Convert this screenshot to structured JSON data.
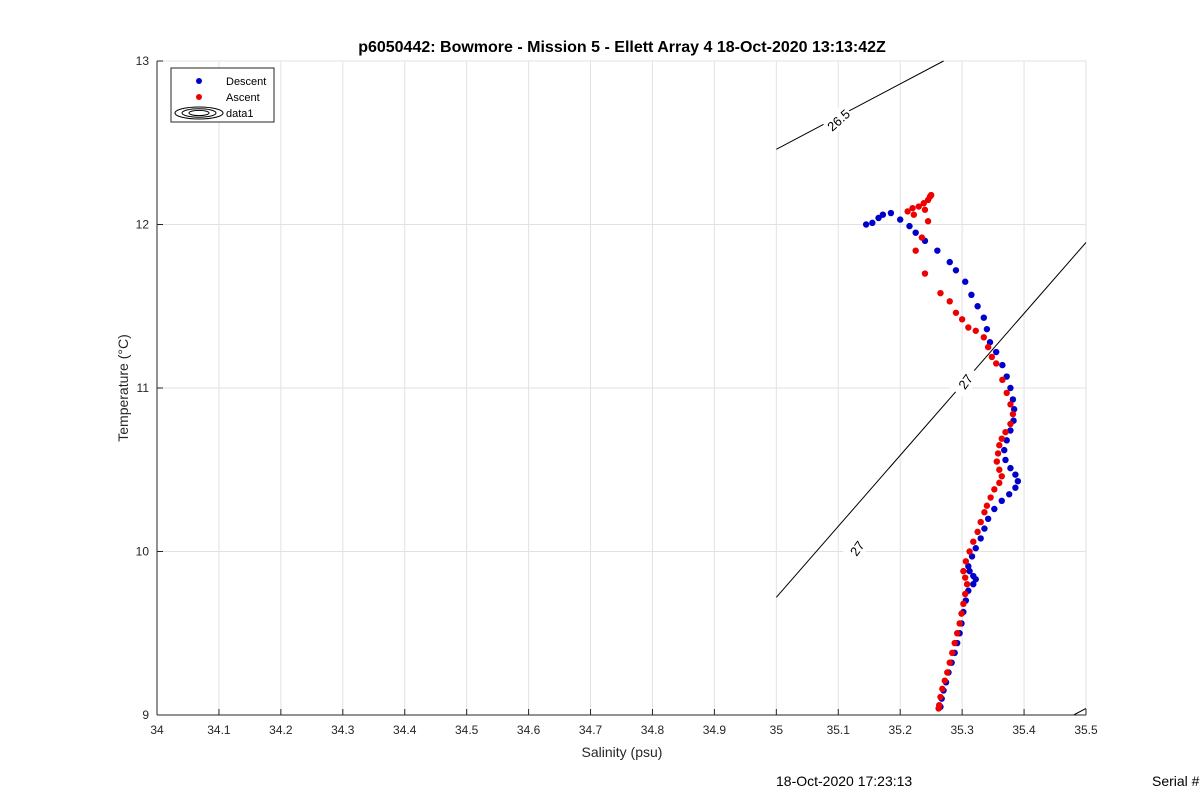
{
  "chart_data": {
    "type": "scatter",
    "title": "p6050442: Bowmore - Mission 5 - Ellett Array 4 18-Oct-2020 13:13:42Z",
    "xlabel": "Salinity (psu)",
    "ylabel": "Temperature (°C)",
    "xlim": [
      34,
      35.5
    ],
    "ylim": [
      9,
      13
    ],
    "x_ticks": [
      "34",
      "34.1",
      "34.2",
      "34.3",
      "34.4",
      "34.5",
      "34.6",
      "34.7",
      "34.8",
      "34.9",
      "35",
      "35.1",
      "35.2",
      "35.3",
      "35.4",
      "35.5"
    ],
    "y_ticks": [
      "9",
      "10",
      "11",
      "12",
      "13"
    ],
    "grid": true,
    "legend_position": "top-left",
    "legend": [
      "Descent",
      "Ascent",
      "data1"
    ],
    "series": [
      {
        "name": "Descent",
        "color": "#0000cc",
        "points": [
          [
            35.145,
            12.0
          ],
          [
            35.155,
            12.01
          ],
          [
            35.165,
            12.04
          ],
          [
            35.172,
            12.06
          ],
          [
            35.185,
            12.07
          ],
          [
            35.2,
            12.03
          ],
          [
            35.215,
            11.99
          ],
          [
            35.225,
            11.95
          ],
          [
            35.24,
            11.9
          ],
          [
            35.26,
            11.84
          ],
          [
            35.28,
            11.77
          ],
          [
            35.29,
            11.72
          ],
          [
            35.305,
            11.65
          ],
          [
            35.315,
            11.57
          ],
          [
            35.325,
            11.5
          ],
          [
            35.335,
            11.43
          ],
          [
            35.34,
            11.36
          ],
          [
            35.345,
            11.28
          ],
          [
            35.355,
            11.22
          ],
          [
            35.365,
            11.14
          ],
          [
            35.372,
            11.07
          ],
          [
            35.378,
            11.0
          ],
          [
            35.382,
            10.93
          ],
          [
            35.384,
            10.87
          ],
          [
            35.383,
            10.8
          ],
          [
            35.378,
            10.74
          ],
          [
            35.372,
            10.68
          ],
          [
            35.368,
            10.62
          ],
          [
            35.37,
            10.56
          ],
          [
            35.378,
            10.51
          ],
          [
            35.386,
            10.47
          ],
          [
            35.39,
            10.43
          ],
          [
            35.386,
            10.39
          ],
          [
            35.376,
            10.35
          ],
          [
            35.364,
            10.31
          ],
          [
            35.352,
            10.26
          ],
          [
            35.342,
            10.2
          ],
          [
            35.336,
            10.14
          ],
          [
            35.33,
            10.08
          ],
          [
            35.322,
            10.02
          ],
          [
            35.316,
            9.97
          ],
          [
            35.31,
            9.91
          ],
          [
            35.312,
            9.88
          ],
          [
            35.318,
            9.85
          ],
          [
            35.322,
            9.83
          ],
          [
            35.318,
            9.8
          ],
          [
            35.31,
            9.76
          ],
          [
            35.306,
            9.7
          ],
          [
            35.302,
            9.63
          ],
          [
            35.299,
            9.56
          ],
          [
            35.296,
            9.5
          ],
          [
            35.292,
            9.44
          ],
          [
            35.288,
            9.38
          ],
          [
            35.283,
            9.32
          ],
          [
            35.278,
            9.26
          ],
          [
            35.274,
            9.2
          ],
          [
            35.27,
            9.15
          ],
          [
            35.267,
            9.1
          ],
          [
            35.265,
            9.05
          ]
        ]
      },
      {
        "name": "Ascent",
        "color": "#ee0000",
        "points": [
          [
            35.248,
            12.17
          ],
          [
            35.245,
            12.15
          ],
          [
            35.238,
            12.13
          ],
          [
            35.23,
            12.11
          ],
          [
            35.22,
            12.1
          ],
          [
            35.212,
            12.08
          ],
          [
            35.222,
            12.06
          ],
          [
            35.24,
            12.09
          ],
          [
            35.25,
            12.18
          ],
          [
            35.245,
            12.02
          ],
          [
            35.235,
            11.92
          ],
          [
            35.225,
            11.84
          ],
          [
            35.24,
            11.7
          ],
          [
            35.265,
            11.58
          ],
          [
            35.28,
            11.53
          ],
          [
            35.29,
            11.46
          ],
          [
            35.3,
            11.42
          ],
          [
            35.31,
            11.37
          ],
          [
            35.322,
            11.35
          ],
          [
            35.335,
            11.31
          ],
          [
            35.342,
            11.25
          ],
          [
            35.348,
            11.19
          ],
          [
            35.355,
            11.15
          ],
          [
            35.365,
            11.05
          ],
          [
            35.372,
            10.97
          ],
          [
            35.378,
            10.9
          ],
          [
            35.382,
            10.84
          ],
          [
            35.378,
            10.78
          ],
          [
            35.37,
            10.73
          ],
          [
            35.364,
            10.69
          ],
          [
            35.36,
            10.65
          ],
          [
            35.358,
            10.6
          ],
          [
            35.356,
            10.55
          ],
          [
            35.36,
            10.5
          ],
          [
            35.364,
            10.46
          ],
          [
            35.36,
            10.42
          ],
          [
            35.352,
            10.38
          ],
          [
            35.346,
            10.33
          ],
          [
            35.34,
            10.28
          ],
          [
            35.336,
            10.24
          ],
          [
            35.33,
            10.18
          ],
          [
            35.325,
            10.12
          ],
          [
            35.318,
            10.06
          ],
          [
            35.312,
            10.0
          ],
          [
            35.306,
            9.94
          ],
          [
            35.302,
            9.88
          ],
          [
            35.305,
            9.84
          ],
          [
            35.308,
            9.8
          ],
          [
            35.305,
            9.74
          ],
          [
            35.302,
            9.68
          ],
          [
            35.299,
            9.62
          ],
          [
            35.296,
            9.56
          ],
          [
            35.292,
            9.5
          ],
          [
            35.288,
            9.44
          ],
          [
            35.284,
            9.38
          ],
          [
            35.28,
            9.32
          ],
          [
            35.276,
            9.26
          ],
          [
            35.272,
            9.21
          ],
          [
            35.268,
            9.16
          ],
          [
            35.265,
            9.11
          ],
          [
            35.263,
            9.06
          ],
          [
            35.262,
            9.04
          ]
        ]
      }
    ],
    "contours": [
      {
        "label": "26.5",
        "points": [
          [
            35.0,
            12.46
          ],
          [
            35.27,
            13.0
          ]
        ]
      },
      {
        "label": "27",
        "points": [
          [
            35.0,
            9.72
          ],
          [
            35.5,
            11.89
          ]
        ]
      },
      {
        "label": "",
        "points": [
          [
            35.48,
            9.0
          ],
          [
            35.5,
            9.04
          ]
        ]
      }
    ],
    "contour_labels": [
      {
        "text": "26.5",
        "x": 35.1,
        "y": 12.64,
        "angle": -42
      },
      {
        "text": "27",
        "x": 35.13,
        "y": 10.02,
        "angle": -54
      },
      {
        "text": "27",
        "x": 35.305,
        "y": 11.04,
        "angle": -54
      }
    ]
  },
  "footer": {
    "timestamp": "18-Oct-2020 17:23:13",
    "serial": "Serial #"
  }
}
